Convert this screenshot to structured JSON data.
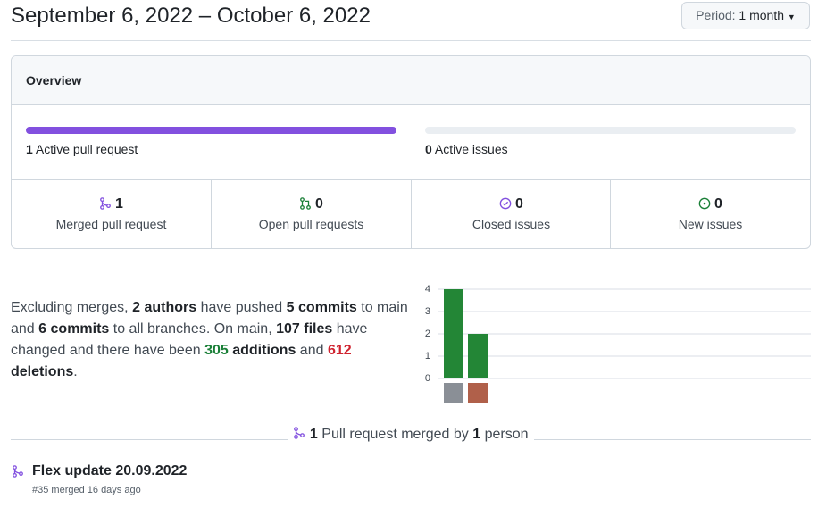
{
  "header": {
    "date_range": "September 6, 2022 – October 6, 2022",
    "period_label": "Period:",
    "period_value": "1 month"
  },
  "overview": {
    "title": "Overview",
    "active_pull_requests": {
      "count": 1,
      "label": "Active pull request",
      "color": "#8250df"
    },
    "active_issues": {
      "count": 0,
      "label": "Active issues",
      "color": "#1a7f37"
    },
    "stats": [
      {
        "count": 1,
        "label": "Merged pull request"
      },
      {
        "count": 0,
        "label": "Open pull requests"
      },
      {
        "count": 0,
        "label": "Closed issues"
      },
      {
        "count": 0,
        "label": "New issues"
      }
    ]
  },
  "summary": {
    "intro": "Excluding merges,",
    "authors": 2,
    "authors_label": "authors",
    "pushed": "have pushed",
    "main_commits": 5,
    "commits_label": "commits",
    "to_main": "to main and",
    "all_commits": 6,
    "commits_label_2": "commits",
    "to_all": "to all branches. On main,",
    "files": 107,
    "files_label": "files",
    "changed": "have changed and there have been",
    "additions": 305,
    "additions_label": "additions",
    "and": "and",
    "deletions": 612,
    "deletions_label": "deletions",
    "end": "."
  },
  "commits_chart": {
    "type": "bar",
    "values": [
      4,
      2
    ],
    "color": "#238636",
    "ylim": [
      0,
      4
    ],
    "yticks": [
      0,
      1,
      2,
      3,
      4
    ],
    "grid": true
  },
  "merged": {
    "pull_requests": 1,
    "text": "Pull request merged by",
    "people": 1,
    "people_label": "person",
    "items": [
      {
        "title": "Flex update 20.09.2022",
        "number": "#35",
        "status": "merged 16 days ago"
      }
    ]
  }
}
